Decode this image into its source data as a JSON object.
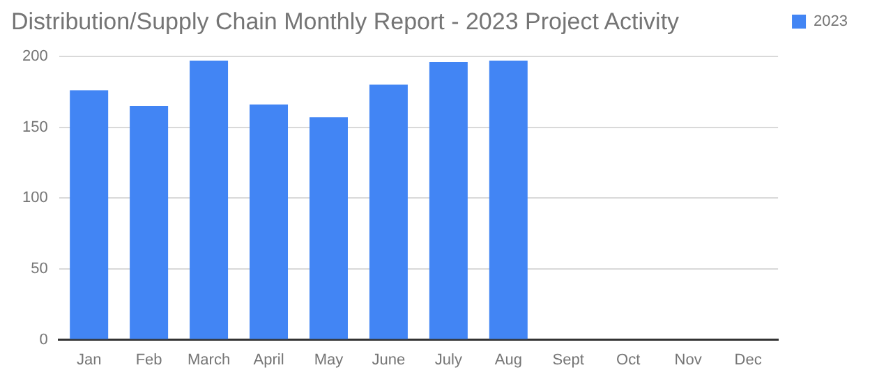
{
  "chart_data": {
    "type": "bar",
    "title": "Distribution/Supply Chain Monthly Report - 2023 Project Activity",
    "categories": [
      "Jan",
      "Feb",
      "March",
      "April",
      "May",
      "June",
      "July",
      "Aug",
      "Sept",
      "Oct",
      "Nov",
      "Dec"
    ],
    "series": [
      {
        "name": "2023",
        "color": "#4285f4",
        "values": [
          176,
          165,
          197,
          166,
          157,
          180,
          196,
          197,
          null,
          null,
          null,
          null
        ]
      }
    ],
    "ylim": [
      0,
      200
    ],
    "yticks": [
      0,
      50,
      100,
      150,
      200
    ],
    "grid": "y",
    "legend": "top right"
  }
}
